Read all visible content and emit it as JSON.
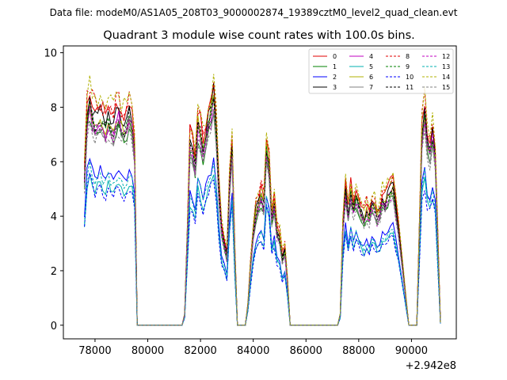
{
  "header": {
    "data_file": "Data file: modeM0/AS1A05_208T03_9000002874_19389cztM0_level2_quad_clean.evt"
  },
  "chart_data": {
    "type": "line",
    "title": "Quadrant 3 module wise count rates with 100.0s bins.",
    "xlabel": "",
    "ylabel": "",
    "x_offset_label": "+2.942e8",
    "xlim": [
      76800,
      91700
    ],
    "ylim": [
      -0.5,
      10.25
    ],
    "x_ticks": [
      78000,
      80000,
      82000,
      84000,
      86000,
      88000,
      90000
    ],
    "x_tick_labels": [
      "78000",
      "80000",
      "82000",
      "84000",
      "86000",
      "88000",
      "90000"
    ],
    "y_ticks": [
      0,
      2,
      4,
      6,
      8,
      10
    ],
    "y_tick_labels": [
      "0",
      "2",
      "4",
      "6",
      "8",
      "10"
    ],
    "legend_position": "upper right",
    "envelope": {
      "x": [
        77600,
        77700,
        77800,
        77900,
        78000,
        78100,
        78200,
        78300,
        78400,
        78500,
        78600,
        78700,
        78800,
        78900,
        79000,
        79100,
        79200,
        79300,
        79400,
        79500,
        79600,
        81300,
        81400,
        81500,
        81600,
        81700,
        81800,
        81900,
        82000,
        82100,
        82200,
        82300,
        82400,
        82500,
        82600,
        82700,
        82800,
        82900,
        83000,
        83100,
        83200,
        83300,
        83400,
        83500,
        83700,
        83800,
        83900,
        84000,
        84100,
        84200,
        84300,
        84400,
        84500,
        84600,
        84700,
        84800,
        84900,
        85000,
        85100,
        85200,
        85300,
        85400,
        87200,
        87300,
        87400,
        87500,
        87600,
        87700,
        87800,
        87900,
        88000,
        88100,
        88200,
        88300,
        88400,
        88500,
        88600,
        88700,
        88800,
        88900,
        89000,
        89100,
        89200,
        89300,
        89400,
        89500,
        89900,
        90000,
        90100,
        90200,
        90300,
        90400,
        90500,
        90600,
        90700,
        90800,
        90900,
        91000,
        91100
      ],
      "values": [
        5.5,
        7.8,
        8.4,
        7.9,
        7.6,
        7.7,
        7.9,
        7.6,
        7.4,
        7.8,
        7.6,
        7.3,
        7.7,
        7.9,
        7.5,
        7.4,
        7.6,
        8.0,
        7.6,
        6.5,
        0.0,
        0.0,
        0.4,
        3.5,
        6.8,
        6.5,
        6.0,
        7.5,
        7.2,
        6.6,
        7.0,
        7.6,
        7.9,
        8.6,
        7.2,
        5.0,
        3.6,
        3.1,
        2.6,
        5.2,
        6.7,
        2.8,
        0.0,
        0.0,
        0.0,
        0.8,
        2.3,
        3.5,
        4.2,
        4.5,
        4.8,
        4.5,
        6.7,
        6.0,
        4.0,
        4.6,
        3.5,
        3.3,
        2.5,
        2.8,
        1.6,
        0.0,
        0.0,
        0.4,
        3.8,
        5.1,
        4.2,
        5.0,
        4.4,
        4.8,
        4.5,
        4.2,
        4.0,
        4.3,
        4.1,
        4.5,
        4.4,
        4.0,
        4.2,
        4.7,
        4.6,
        4.8,
        5.0,
        5.1,
        4.4,
        3.6,
        0.0,
        0.0,
        0.0,
        0.0,
        3.5,
        7.2,
        8.1,
        6.8,
        6.5,
        7.2,
        6.3,
        3.2,
        0.1
      ]
    },
    "series": [
      {
        "name": "0",
        "scale": 1.04,
        "jitter": 0.25,
        "color": "#e00000",
        "dash": "solid"
      },
      {
        "name": "1",
        "scale": 0.92,
        "jitter": 0.15,
        "color": "#008000",
        "dash": "solid"
      },
      {
        "name": "2",
        "scale": 0.72,
        "jitter": 0.12,
        "color": "#0000ff",
        "dash": "solid"
      },
      {
        "name": "3",
        "scale": 1.0,
        "jitter": 0.2,
        "color": "#000000",
        "dash": "solid"
      },
      {
        "name": "4",
        "scale": 0.96,
        "jitter": 0.2,
        "color": "#c000c0",
        "dash": "solid"
      },
      {
        "name": "5",
        "scale": 0.66,
        "jitter": 0.12,
        "color": "#00b0b0",
        "dash": "solid"
      },
      {
        "name": "6",
        "scale": 0.98,
        "jitter": 0.25,
        "color": "#b0b000",
        "dash": "solid"
      },
      {
        "name": "7",
        "scale": 0.93,
        "jitter": 0.15,
        "color": "#808080",
        "dash": "solid"
      },
      {
        "name": "8",
        "scale": 1.06,
        "jitter": 0.25,
        "color": "#e00000",
        "dash": "dashed"
      },
      {
        "name": "9",
        "scale": 0.95,
        "jitter": 0.2,
        "color": "#008000",
        "dash": "dashed"
      },
      {
        "name": "10",
        "scale": 0.64,
        "jitter": 0.15,
        "color": "#0000ff",
        "dash": "dashed"
      },
      {
        "name": "11",
        "scale": 0.97,
        "jitter": 0.2,
        "color": "#000000",
        "dash": "dashed"
      },
      {
        "name": "12",
        "scale": 0.94,
        "jitter": 0.2,
        "color": "#c000c0",
        "dash": "dashed"
      },
      {
        "name": "13",
        "scale": 0.7,
        "jitter": 0.12,
        "color": "#00b0b0",
        "dash": "dashed"
      },
      {
        "name": "14",
        "scale": 1.08,
        "jitter": 0.25,
        "color": "#b0b000",
        "dash": "dashed"
      },
      {
        "name": "15",
        "scale": 0.9,
        "jitter": 0.15,
        "color": "#808080",
        "dash": "dashed"
      }
    ]
  }
}
